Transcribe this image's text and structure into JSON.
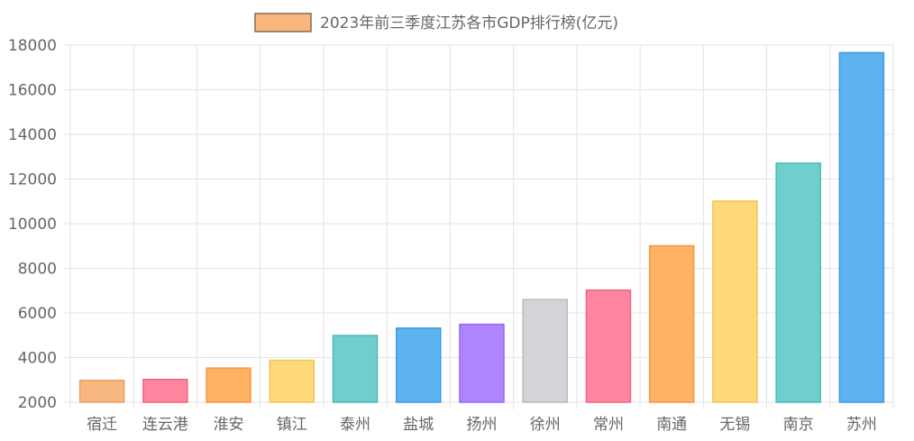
{
  "chart_data": {
    "type": "bar",
    "legend": {
      "label": "2023年前三季度江苏各市GDP排行榜(亿元)",
      "position": "top",
      "swatch_fill": "#F7B77F",
      "swatch_stroke": "#8C6A4A"
    },
    "categories": [
      "宿迁",
      "连云港",
      "淮安",
      "镇江",
      "泰州",
      "盐城",
      "扬州",
      "徐州",
      "常州",
      "南通",
      "无锡",
      "南京",
      "苏州"
    ],
    "values": [
      2980,
      3020,
      3530,
      3880,
      4990,
      5320,
      5490,
      6600,
      7020,
      9010,
      11010,
      12710,
      17660
    ],
    "colors": [
      {
        "fill": "#F7B77F",
        "stroke": "#E8A06A"
      },
      {
        "fill": "#FF85A0",
        "stroke": "#F0637F"
      },
      {
        "fill": "#FFB164",
        "stroke": "#F59A45"
      },
      {
        "fill": "#FFD878",
        "stroke": "#F0C45A"
      },
      {
        "fill": "#6FCFCD",
        "stroke": "#4BB8B6"
      },
      {
        "fill": "#5DB3EF",
        "stroke": "#3A9AE0"
      },
      {
        "fill": "#AE85FF",
        "stroke": "#9A66F0"
      },
      {
        "fill": "#D3D4D8",
        "stroke": "#B9BAC0"
      },
      {
        "fill": "#FF85A0",
        "stroke": "#F0637F"
      },
      {
        "fill": "#FFB164",
        "stroke": "#F59A45"
      },
      {
        "fill": "#FFD878",
        "stroke": "#F0C45A"
      },
      {
        "fill": "#6FCFCD",
        "stroke": "#4BB8B6"
      },
      {
        "fill": "#5DB3EF",
        "stroke": "#3A9AE0"
      }
    ],
    "ylim": [
      2000,
      18000
    ],
    "yticks": [
      "2000",
      "4000",
      "6000",
      "8000",
      "10000",
      "12000",
      "14000",
      "16000",
      "18000"
    ],
    "grid": true,
    "title": "",
    "xlabel": "",
    "ylabel": ""
  }
}
